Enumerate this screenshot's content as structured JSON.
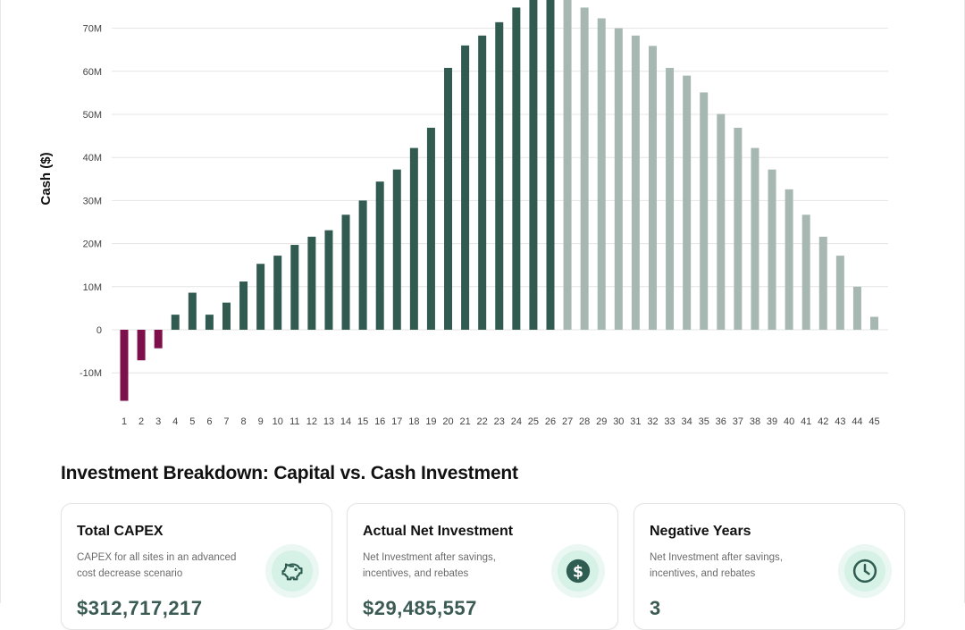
{
  "chart_data": {
    "type": "bar",
    "ylabel": "Cash ($)",
    "ylim": [
      -17,
      78
    ],
    "yticks": [
      -10,
      0,
      10,
      20,
      30,
      40,
      50,
      60,
      70
    ],
    "ytick_labels": [
      "-10M",
      "0",
      "10M",
      "20M",
      "30M",
      "40M",
      "50M",
      "60M",
      "70M"
    ],
    "categories": [
      "1",
      "2",
      "3",
      "4",
      "5",
      "6",
      "7",
      "8",
      "9",
      "10",
      "11",
      "12",
      "13",
      "14",
      "15",
      "16",
      "17",
      "18",
      "19",
      "20",
      "21",
      "22",
      "23",
      "24",
      "25",
      "26",
      "27",
      "28",
      "29",
      "30",
      "31",
      "32",
      "33",
      "34",
      "35",
      "36",
      "37",
      "38",
      "39",
      "40",
      "41",
      "42",
      "43",
      "44",
      "45"
    ],
    "values": [
      -16.5,
      -7.1,
      -4.3,
      3.5,
      8.6,
      3.5,
      6.3,
      11.2,
      15.3,
      17.2,
      19.7,
      21.6,
      23.1,
      26.7,
      30.0,
      34.4,
      37.2,
      42.2,
      46.9,
      60.8,
      66.0,
      68.3,
      71.4,
      74.8,
      78,
      78,
      78,
      74.8,
      72.3,
      70.0,
      68.3,
      65.9,
      60.8,
      59.0,
      55.1,
      50.1,
      46.9,
      42.2,
      37.2,
      32.6,
      26.7,
      21.6,
      17.2,
      10.0,
      3.0
    ],
    "colors": {
      "negative": "#7d0f4a",
      "positive": "#315a50",
      "projected": "#a7b8b3",
      "grid": "#e4e4e4",
      "tick_text": "#444444"
    },
    "projected_from_year": 27,
    "grid": true
  },
  "section": {
    "title": "Investment Breakdown: Capital vs. Cash Investment"
  },
  "cards": [
    {
      "title": "Total CAPEX",
      "description": "CAPEX for all sites in an advanced cost decrease scenario",
      "icon": "piggy-bank-icon",
      "value": "$312,717,217"
    },
    {
      "title": "Actual Net Investment",
      "description": "Net Investment after savings, incentives, and rebates",
      "icon": "dollar-coin-icon",
      "value": "$29,485,557"
    },
    {
      "title": "Negative Years",
      "description": "Net Investment after savings, incentives, and rebates",
      "icon": "clock-icon",
      "value": "3"
    }
  ]
}
